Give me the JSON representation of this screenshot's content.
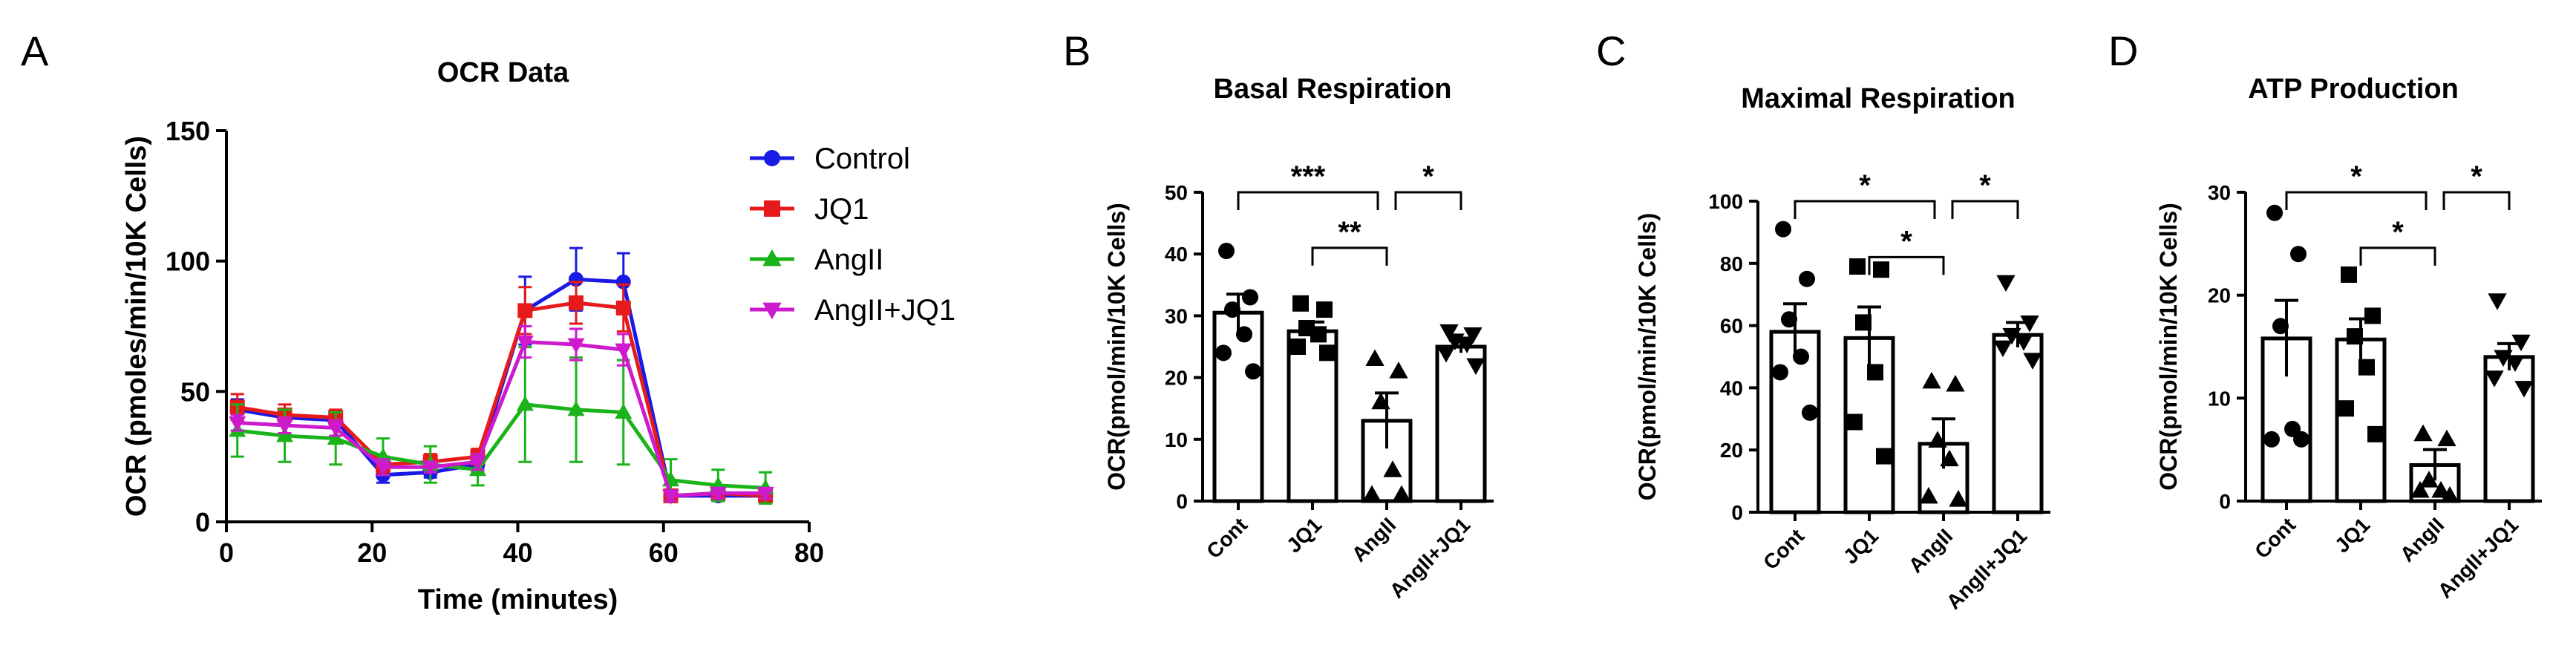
{
  "chart_data": [
    {
      "panel": "A",
      "type": "line",
      "title": "OCR Data",
      "xlabel": "Time (minutes)",
      "ylabel": "OCR (pmoles/min/10K Cells)",
      "xlim": [
        0,
        80
      ],
      "ylim": [
        0,
        150
      ],
      "xticks": [
        "0",
        "20",
        "40",
        "60",
        "80"
      ],
      "yticks": [
        "0",
        "50",
        "100",
        "150"
      ],
      "legend_position": "right",
      "x": [
        1.5,
        8,
        15,
        21.5,
        28,
        34.5,
        41,
        48,
        54.5,
        61,
        67.5,
        74
      ],
      "series": [
        {
          "name": "Control",
          "color": "#1a1ae6",
          "marker": "circle",
          "values": [
            43,
            40,
            39,
            18,
            19,
            22,
            81,
            93,
            92,
            10,
            10,
            10
          ],
          "errors": [
            4,
            3,
            3,
            3,
            2,
            3,
            13,
            12,
            11,
            2,
            2,
            2
          ]
        },
        {
          "name": "JQ1",
          "color": "#e61a1a",
          "marker": "square",
          "values": [
            44,
            41,
            40,
            22,
            23,
            25,
            81,
            84,
            82,
            10,
            11,
            10
          ],
          "errors": [
            5,
            4,
            3,
            3,
            3,
            3,
            9,
            8,
            9,
            2,
            2,
            2
          ]
        },
        {
          "name": "AngII",
          "color": "#1ab31a",
          "marker": "triangle-up",
          "values": [
            35,
            33,
            32,
            25,
            22,
            20,
            45,
            43,
            42,
            16,
            14,
            13
          ],
          "errors": [
            10,
            10,
            10,
            7,
            7,
            6,
            22,
            20,
            20,
            8,
            6,
            6
          ]
        },
        {
          "name": "AngII+JQ1",
          "color": "#cc1acc",
          "marker": "triangle-down",
          "values": [
            38,
            37,
            36,
            21,
            21,
            23,
            69,
            68,
            66,
            10,
            11,
            11
          ],
          "errors": [
            3,
            3,
            3,
            3,
            2,
            3,
            6,
            6,
            6,
            2,
            2,
            2
          ]
        }
      ]
    },
    {
      "panel": "B",
      "type": "bar",
      "title": "Basal Respiration",
      "ylabel": "OCR(pmol/min/10K Cells)",
      "ylim": [
        0,
        50
      ],
      "yticks": [
        "0",
        "10",
        "20",
        "30",
        "40",
        "50"
      ],
      "categories": [
        "Cont",
        "JQ1",
        "AngII",
        "AngII+JQ1"
      ],
      "values": [
        30.5,
        27.5,
        13,
        25
      ],
      "errors": [
        3,
        1.5,
        4.5,
        1
      ],
      "points": [
        [
          40.5,
          33,
          31,
          27,
          24,
          21
        ],
        [
          32,
          31,
          28,
          27,
          25,
          24
        ],
        [
          23,
          21,
          16,
          5,
          1,
          1
        ],
        [
          27.5,
          27,
          26,
          25.5,
          24,
          22
        ]
      ],
      "markers": [
        "circle",
        "square",
        "triangle-up",
        "triangle-down"
      ],
      "significance": [
        {
          "pair": [
            0,
            2
          ],
          "label": "***"
        },
        {
          "pair": [
            1,
            2
          ],
          "label": "**"
        },
        {
          "pair": [
            2,
            3
          ],
          "label": "*"
        }
      ]
    },
    {
      "panel": "C",
      "type": "bar",
      "title": "Maximal Respiration",
      "ylabel": "OCR(pmol/min/10K Cells)",
      "ylim": [
        0,
        100
      ],
      "yticks": [
        "0",
        "20",
        "40",
        "60",
        "80",
        "100"
      ],
      "categories": [
        "Cont",
        "JQ1",
        "AngII",
        "AngII+JQ1"
      ],
      "values": [
        58,
        56,
        22,
        57
      ],
      "errors": [
        9,
        10,
        8,
        4
      ],
      "points": [
        [
          91,
          75,
          62,
          50,
          45,
          32
        ],
        [
          79,
          78,
          61,
          45,
          29,
          18
        ],
        [
          42,
          41,
          23,
          17,
          5,
          4
        ],
        [
          74,
          61,
          57,
          55,
          53,
          49
        ]
      ],
      "markers": [
        "circle",
        "square",
        "triangle-up",
        "triangle-down"
      ],
      "significance": [
        {
          "pair": [
            0,
            2
          ],
          "label": "*"
        },
        {
          "pair": [
            1,
            2
          ],
          "label": "*"
        },
        {
          "pair": [
            2,
            3
          ],
          "label": "*"
        }
      ]
    },
    {
      "panel": "D",
      "type": "bar",
      "title": "ATP Production",
      "ylabel": "OCR(pmol/min/10K Cells)",
      "ylim": [
        0,
        30
      ],
      "yticks": [
        "0",
        "10",
        "20",
        "30"
      ],
      "categories": [
        "Cont",
        "JQ1",
        "AngII",
        "AngII+JQ1"
      ],
      "values": [
        15.8,
        15.7,
        3.5,
        14
      ],
      "errors": [
        3.7,
        2,
        1.5,
        1.3
      ],
      "points": [
        [
          28,
          24,
          17,
          7,
          6,
          6
        ],
        [
          22,
          18,
          16,
          13,
          9,
          6.5
        ],
        [
          6.5,
          6,
          2,
          1,
          1,
          0.5
        ],
        [
          19.5,
          15.5,
          14,
          13.5,
          12,
          11
        ]
      ],
      "markers": [
        "circle",
        "square",
        "triangle-up",
        "triangle-down"
      ],
      "significance": [
        {
          "pair": [
            0,
            2
          ],
          "label": "*"
        },
        {
          "pair": [
            1,
            2
          ],
          "label": "*"
        },
        {
          "pair": [
            2,
            3
          ],
          "label": "*"
        }
      ]
    }
  ]
}
